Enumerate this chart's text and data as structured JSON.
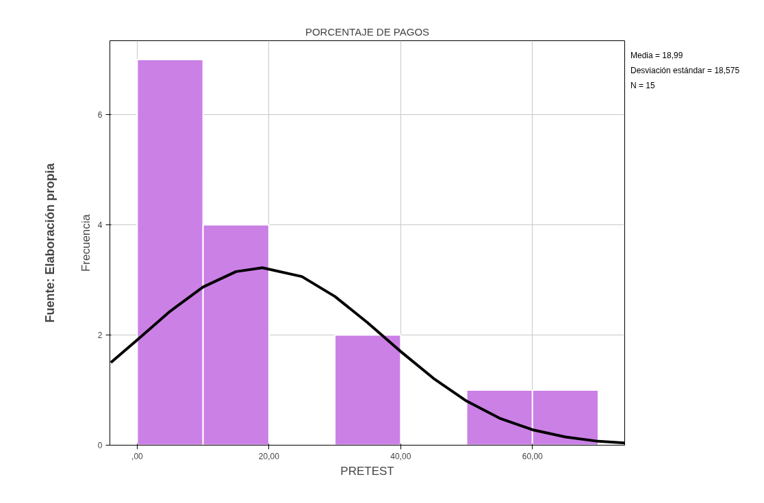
{
  "chart_data": {
    "type": "histogram",
    "title": "PORCENTAJE DE PAGOS",
    "xlabel": "PRETEST",
    "ylabel": "Frecuencia",
    "bins": [
      0,
      10,
      20,
      30,
      40,
      50,
      60,
      70
    ],
    "values": [
      7,
      4,
      0,
      2,
      0,
      1,
      1
    ],
    "color": "#cb80e6",
    "series": [
      {
        "type": "line",
        "color": "#000000",
        "x": [
          -4,
          0,
          5,
          10,
          15,
          19,
          25,
          30,
          35,
          40,
          45,
          50,
          55,
          60,
          65,
          70,
          74
        ],
        "values": [
          1.5,
          1.91,
          2.43,
          2.87,
          3.15,
          3.22,
          3.06,
          2.7,
          2.22,
          1.7,
          1.21,
          0.8,
          0.49,
          0.28,
          0.15,
          0.07,
          0.04
        ]
      }
    ],
    "xlim": [
      -4.15,
      74
    ],
    "ylim": [
      0,
      7.34
    ],
    "xticks": [
      {
        "value": 0,
        "label": ",00"
      },
      {
        "value": 20,
        "label": "20,00"
      },
      {
        "value": 40,
        "label": "40,00"
      },
      {
        "value": 60,
        "label": "60,00"
      }
    ],
    "yticks": [
      0,
      2,
      4,
      6
    ],
    "grid": true,
    "annotations": [
      "Media = 18,99",
      "Desviación estándar = 18,575",
      "N = 15",
      "Fuente: Elaboración propia"
    ]
  }
}
